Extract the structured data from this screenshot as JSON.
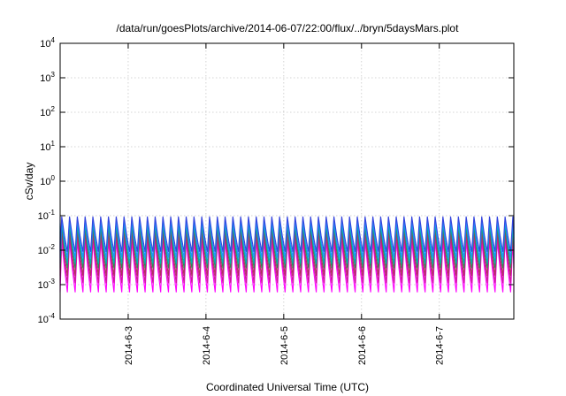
{
  "chart_data": {
    "type": "line",
    "title": "/data/run/goesPlots/archive/2014-06-07/22:00/flux/../bryn/5daysMars.plot",
    "xlabel": "Coordinated Universal Time (UTC)",
    "ylabel": "cSv/day",
    "x_range": [
      "2014-06-02 03:00",
      "2014-06-07 23:00"
    ],
    "x_ticks": [
      "2014-6-3",
      "2014-6-4",
      "2014-6-5",
      "2014-6-6",
      "2014-6-7"
    ],
    "y_scale": "log",
    "y_range": [
      0.0001,
      10000
    ],
    "y_ticks": [
      {
        "base": "10",
        "exp": "-4"
      },
      {
        "base": "10",
        "exp": "-3"
      },
      {
        "base": "10",
        "exp": "-2"
      },
      {
        "base": "10",
        "exp": "-1"
      },
      {
        "base": "10",
        "exp": "0"
      },
      {
        "base": "10",
        "exp": "1"
      },
      {
        "base": "10",
        "exp": "2"
      },
      {
        "base": "10",
        "exp": "3"
      },
      {
        "base": "10",
        "exp": "4"
      }
    ],
    "grid": true,
    "cycle_period_hours": 2.4,
    "series": [
      {
        "color": "#ff00ff",
        "peak": 0.018,
        "trough": 0.0006
      },
      {
        "color": "#cc1a99",
        "peak": 0.025,
        "trough": 0.0011
      },
      {
        "color": "#b03060",
        "peak": 0.035,
        "trough": 0.0018
      },
      {
        "color": "#2e8b57",
        "peak": 0.05,
        "trough": 0.003
      },
      {
        "color": "#00b3b3",
        "peak": 0.06,
        "trough": 0.004
      },
      {
        "color": "#1e90ff",
        "peak": 0.075,
        "trough": 0.006
      },
      {
        "color": "#3344dd",
        "peak": 0.095,
        "trough": 0.009
      }
    ]
  }
}
